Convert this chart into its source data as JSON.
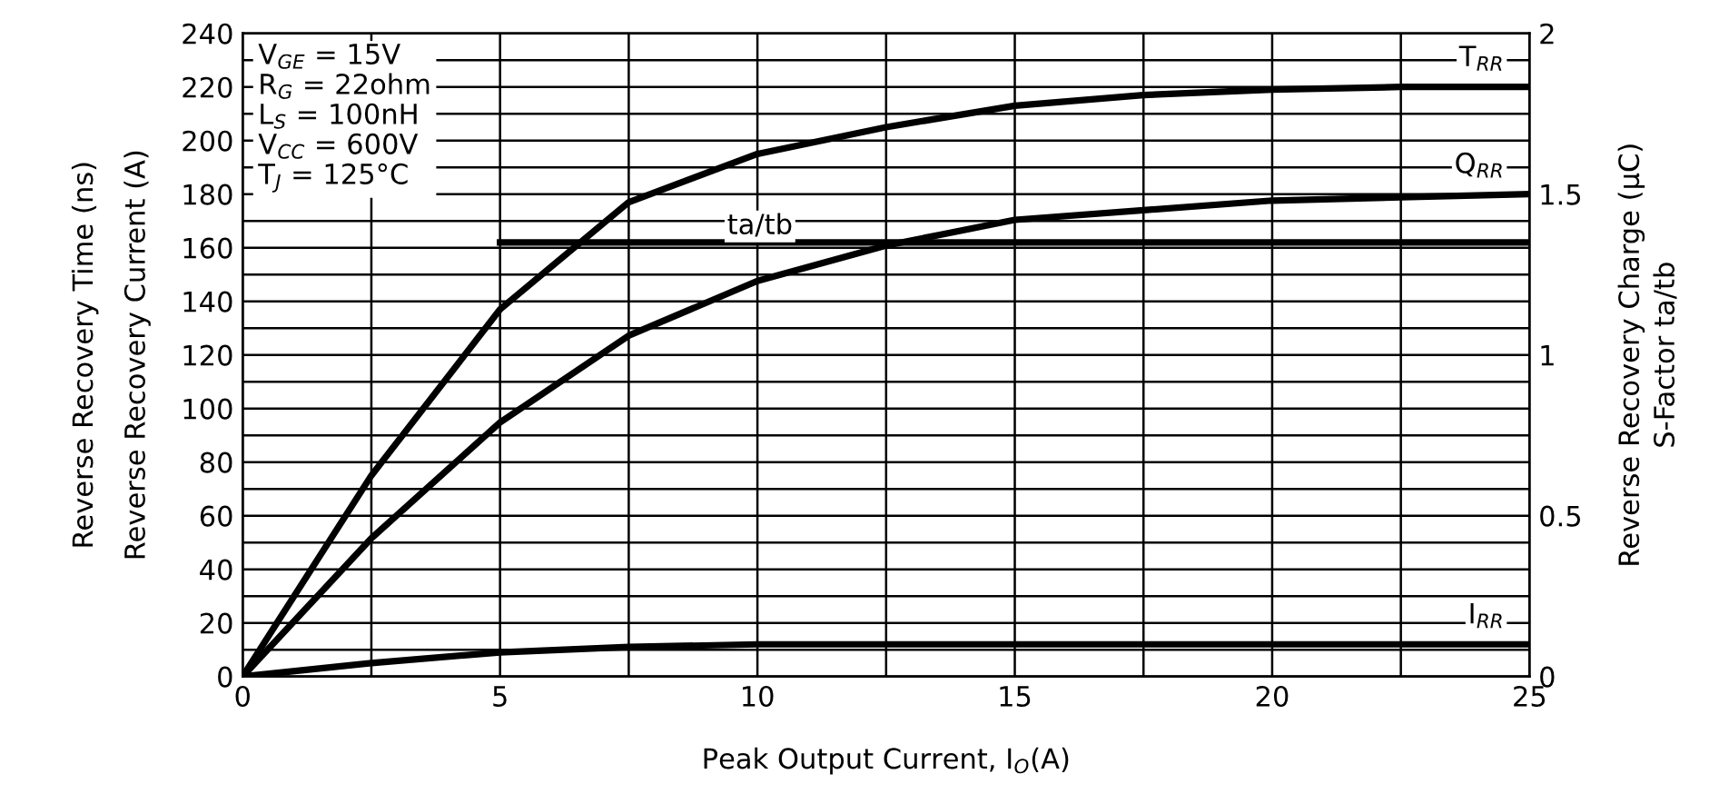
{
  "chart_data": {
    "type": "line",
    "xlabel": "Peak Output Current, I$_{O}$(A)",
    "ylabel": "Reverse Recovery Time (ns)\nReverse Recovery Current (A)",
    "y2label": "Reverse Recovery Charge (µC)\nS-Factor ta/tb",
    "x": [
      0,
      2.5,
      5,
      7.5,
      10,
      12.5,
      15,
      17.5,
      20,
      22.5,
      25
    ],
    "series": [
      {
        "name": "T$_{RR}$",
        "color": "#000000",
        "values": [
          0,
          75,
          137,
          177,
          195,
          205,
          213,
          217,
          219,
          220,
          220
        ]
      },
      {
        "name": "Q$_{RR}$",
        "color": "#000000",
        "axis": "y2",
        "values": [
          0,
          0.43,
          0.79,
          1.06,
          1.23,
          1.34,
          1.42,
          1.45,
          1.48,
          1.49,
          1.5
        ]
      },
      {
        "name": "I$_{RR}$",
        "color": "#000000",
        "values": [
          0,
          5,
          9,
          11,
          12,
          12,
          12,
          12,
          12,
          12,
          12
        ]
      },
      {
        "name": "ta/tb",
        "color": "#000000",
        "axis": "y2",
        "x": [
          5,
          25
        ],
        "values": [
          1.35,
          1.35
        ]
      }
    ],
    "annotations": [
      "V$_{GE}$ = 15V\nR$_{G}$ = 22ohm\nL$_{S}$ = 100nH\nV$_{CC}$ = 600V\nT$_{J}$ = 125°C"
    ],
    "xlim": [
      0,
      25
    ],
    "xticks": [
      0,
      {
        "value": 2.5,
        "label": null
      },
      5,
      {
        "value": 7.5,
        "label": null
      },
      10,
      {
        "value": 12.5,
        "label": null
      },
      15,
      {
        "value": 17.5,
        "label": null
      },
      20,
      {
        "value": 22.5,
        "label": null
      },
      25
    ],
    "ylim": [
      0,
      240
    ],
    "yticks": [
      0,
      {
        "value": 10,
        "label": null
      },
      20,
      {
        "value": 30,
        "label": null
      },
      40,
      {
        "value": 50,
        "label": null
      },
      60,
      {
        "value": 70,
        "label": null
      },
      80,
      {
        "value": 90,
        "label": null
      },
      100,
      {
        "value": 110,
        "label": null
      },
      120,
      {
        "value": 130,
        "label": null
      },
      140,
      {
        "value": 150,
        "label": null
      },
      160,
      {
        "value": 170,
        "label": null
      },
      180,
      {
        "value": 190,
        "label": null
      },
      200,
      {
        "value": 210,
        "label": null
      },
      220,
      {
        "value": 230,
        "label": null
      },
      240
    ],
    "y2lim": [
      0,
      2
    ],
    "y2ticks": [
      0,
      0.5,
      1,
      1.5,
      2
    ],
    "grid": true,
    "legend": false,
    "marker": "none",
    "line_style": "solid"
  }
}
